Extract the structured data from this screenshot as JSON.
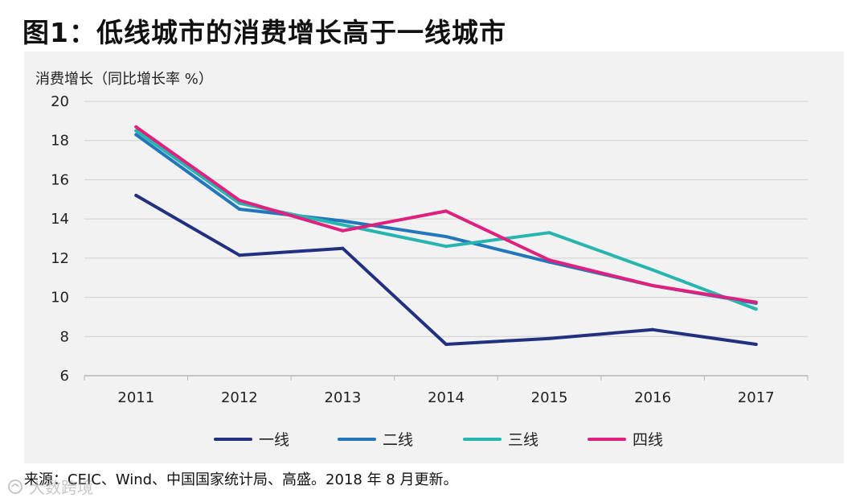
{
  "page": {
    "title": "图1：低线城市的消费增长高于一线城市",
    "source": "来源：CEIC、Wind、中国国家统计局、高盛。2018 年 8 月更新。",
    "watermark": "大数跨境"
  },
  "chart_data": {
    "type": "line",
    "title": "图1：低线城市的消费增长高于一线城市",
    "ylabel": "消费增长（同比增长率 %）",
    "xlabel": "",
    "categories": [
      "2011",
      "2012",
      "2013",
      "2014",
      "2015",
      "2016",
      "2017"
    ],
    "ylim": [
      6,
      20
    ],
    "yticks": [
      6,
      8,
      10,
      12,
      14,
      16,
      18,
      20
    ],
    "grid": true,
    "legend_position": "bottom",
    "series": [
      {
        "name": "一线",
        "color": "#22317f",
        "values": [
          15.2,
          12.15,
          12.5,
          7.6,
          7.9,
          8.35,
          7.6
        ]
      },
      {
        "name": "二线",
        "color": "#2277bb",
        "values": [
          18.3,
          14.5,
          13.9,
          13.1,
          11.8,
          10.6,
          9.7
        ]
      },
      {
        "name": "三线",
        "color": "#27b5b0",
        "values": [
          18.5,
          14.8,
          13.7,
          12.6,
          13.3,
          11.4,
          9.4
        ]
      },
      {
        "name": "四线",
        "color": "#e0207e",
        "values": [
          18.7,
          14.95,
          13.4,
          14.4,
          11.9,
          10.6,
          9.75
        ]
      }
    ]
  }
}
